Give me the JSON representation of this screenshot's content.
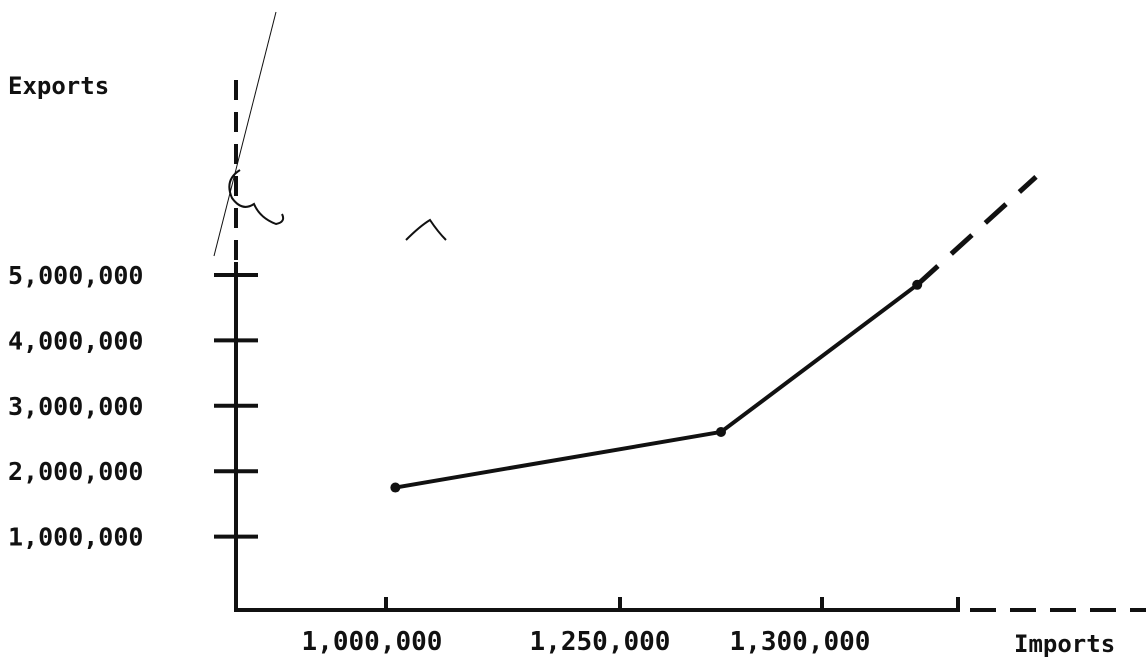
{
  "chart_data": {
    "type": "line",
    "title": "",
    "xlabel": "Imports",
    "ylabel": "Exports",
    "x_tick_labels": [
      "1,000,000",
      "1,250,000",
      "1,300,000"
    ],
    "y_tick_labels": [
      "1,000,000",
      "2,000,000",
      "3,000,000",
      "4,000,000",
      "5,000,000"
    ],
    "y_ticks": [
      1000000,
      2000000,
      3000000,
      4000000,
      5000000
    ],
    "ylim": [
      0,
      6500000
    ],
    "grid": false,
    "series": [
      {
        "x": [
          1010000,
          1275000,
          1370000
        ],
        "y": [
          1750000,
          2600000,
          4850000
        ]
      }
    ],
    "extrapolation_y": [
      4850000,
      6500000
    ],
    "colors": {
      "ink": "#111111",
      "background": "#ffffff"
    }
  }
}
